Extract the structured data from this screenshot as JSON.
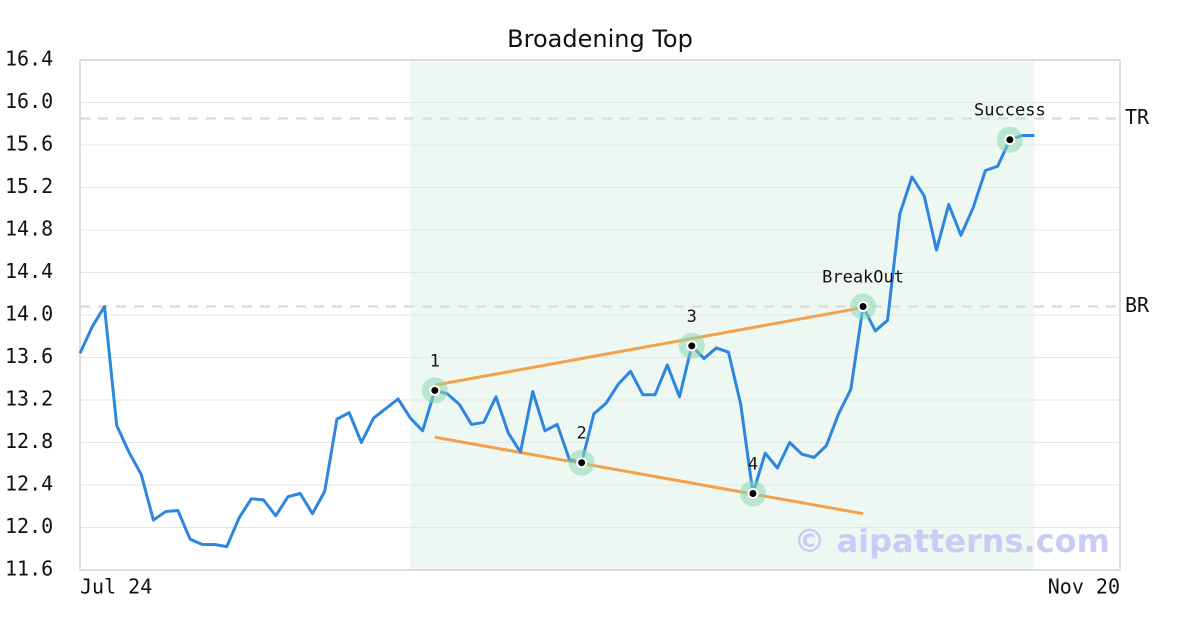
{
  "chart_data": {
    "type": "line",
    "title": "Broadening Top",
    "series": [
      {
        "color": "#2e86de",
        "values": [
          13.64,
          13.89,
          14.08,
          12.96,
          12.71,
          12.5,
          12.07,
          12.15,
          12.16,
          11.89,
          11.84,
          11.84,
          11.82,
          12.09,
          12.27,
          12.26,
          12.11,
          12.29,
          12.32,
          12.13,
          12.34,
          13.02,
          13.08,
          12.8,
          13.03,
          13.12,
          13.21,
          13.03,
          12.91,
          13.29,
          13.26,
          13.16,
          12.97,
          12.99,
          13.23,
          12.89,
          12.71,
          13.28,
          12.91,
          12.97,
          12.64,
          12.61,
          13.07,
          13.17,
          13.35,
          13.47,
          13.25,
          13.25,
          13.53,
          13.23,
          13.71,
          13.59,
          13.69,
          13.65,
          13.16,
          12.32,
          12.7,
          12.56,
          12.8,
          12.69,
          12.66,
          12.77,
          13.07,
          13.3,
          14.08,
          13.85,
          13.95,
          14.95,
          15.3,
          15.12,
          14.61,
          15.04,
          14.75,
          15.01,
          15.36,
          15.4,
          15.65,
          15.69,
          15.69
        ]
      }
    ],
    "xlim": [
      0,
      85
    ],
    "xticks": [
      {
        "value": 0,
        "label": "Jul 24"
      },
      {
        "value": 85,
        "label": "Nov 20"
      }
    ],
    "ylim": [
      11.6,
      16.4
    ],
    "yticks": [
      11.6,
      {
        "value": 12,
        "label": "12.0"
      },
      12.4,
      12.8,
      13.2,
      13.6,
      {
        "value": 14,
        "label": "14.0"
      },
      14.4,
      14.8,
      15.2,
      15.6,
      {
        "value": 16,
        "label": "16.0"
      },
      16.4
    ],
    "grid": true,
    "highlight_range": [
      27,
      78
    ],
    "highlight_color": "#eef8f3",
    "trend_lines": [
      {
        "x": [
          29,
          64
        ],
        "values": [
          13.34,
          14.07
        ],
        "color": "#f5a04a"
      },
      {
        "x": [
          29,
          64
        ],
        "values": [
          12.85,
          12.13
        ],
        "color": "#f5a04a"
      }
    ],
    "levels": [
      {
        "label": "TR",
        "value": 15.85
      },
      {
        "label": "BR",
        "value": 14.08
      }
    ],
    "annotations": [
      {
        "label": "1",
        "x": 29,
        "value": 13.29
      },
      {
        "label": "2",
        "x": 41,
        "value": 12.61
      },
      {
        "label": "3",
        "x": 50,
        "value": 13.71
      },
      {
        "label": "4",
        "x": 55,
        "value": 12.32
      },
      {
        "label": "BreakOut",
        "x": 64,
        "value": 14.08
      },
      {
        "label": "Success",
        "x": 76,
        "value": 15.65
      }
    ],
    "watermark": "© aipatterns.com"
  }
}
